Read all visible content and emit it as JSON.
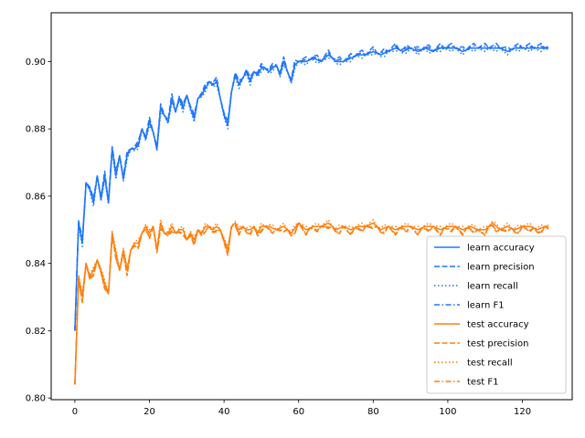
{
  "chart_data": {
    "type": "line",
    "title": "",
    "xlabel": "",
    "ylabel": "",
    "xlim": [
      -6.35,
      133.35
    ],
    "ylim": [
      0.7995,
      0.9145
    ],
    "xticks": [
      0,
      20,
      40,
      60,
      80,
      100,
      120
    ],
    "yticks": [
      0.8,
      0.82,
      0.84,
      0.86,
      0.88,
      0.9
    ],
    "xtick_labels": [
      "0",
      "20",
      "40",
      "60",
      "80",
      "100",
      "120"
    ],
    "ytick_labels": [
      "0.80",
      "0.82",
      "0.84",
      "0.86",
      "0.88",
      "0.90"
    ],
    "grid": false,
    "legend_position": "lower-right",
    "colors": {
      "learn": "#1f77ff",
      "test": "#ff7f0e"
    },
    "anchors": {
      "learn": [
        [
          0,
          0.82
        ],
        [
          1,
          0.852
        ],
        [
          2,
          0.846
        ],
        [
          3,
          0.864
        ],
        [
          4,
          0.862
        ],
        [
          5,
          0.858
        ],
        [
          6,
          0.866
        ],
        [
          7,
          0.859
        ],
        [
          8,
          0.866
        ],
        [
          9,
          0.858
        ],
        [
          10,
          0.874
        ],
        [
          11,
          0.866
        ],
        [
          12,
          0.872
        ],
        [
          13,
          0.865
        ],
        [
          14,
          0.872
        ],
        [
          15,
          0.874
        ],
        [
          16,
          0.874
        ],
        [
          17,
          0.875
        ],
        [
          18,
          0.88
        ],
        [
          19,
          0.877
        ],
        [
          20,
          0.882
        ],
        [
          21,
          0.879
        ],
        [
          22,
          0.874
        ],
        [
          23,
          0.886
        ],
        [
          24,
          0.884
        ],
        [
          25,
          0.882
        ],
        [
          26,
          0.889
        ],
        [
          27,
          0.885
        ],
        [
          28,
          0.889
        ],
        [
          29,
          0.886
        ],
        [
          30,
          0.89
        ],
        [
          31,
          0.886
        ],
        [
          32,
          0.883
        ],
        [
          33,
          0.889
        ],
        [
          34,
          0.89
        ],
        [
          35,
          0.892
        ],
        [
          36,
          0.894
        ],
        [
          37,
          0.893
        ],
        [
          38,
          0.894
        ],
        [
          39,
          0.889
        ],
        [
          40,
          0.884
        ],
        [
          41,
          0.881
        ],
        [
          42,
          0.891
        ],
        [
          43,
          0.896
        ],
        [
          44,
          0.893
        ],
        [
          45,
          0.895
        ],
        [
          46,
          0.897
        ],
        [
          47,
          0.894
        ],
        [
          48,
          0.897
        ],
        [
          49,
          0.896
        ],
        [
          50,
          0.898
        ],
        [
          51,
          0.898
        ],
        [
          52,
          0.897
        ],
        [
          53,
          0.898
        ],
        [
          54,
          0.899
        ],
        [
          55,
          0.896
        ],
        [
          56,
          0.9
        ],
        [
          57,
          0.897
        ],
        [
          58,
          0.894
        ],
        [
          59,
          0.899
        ],
        [
          60,
          0.9
        ],
        [
          62,
          0.9
        ],
        [
          64,
          0.901
        ],
        [
          66,
          0.9
        ],
        [
          68,
          0.902
        ],
        [
          70,
          0.9
        ],
        [
          72,
          0.9
        ],
        [
          74,
          0.901
        ],
        [
          76,
          0.902
        ],
        [
          78,
          0.902
        ],
        [
          80,
          0.903
        ],
        [
          82,
          0.902
        ],
        [
          84,
          0.903
        ],
        [
          86,
          0.904
        ],
        [
          88,
          0.903
        ],
        [
          90,
          0.904
        ],
        [
          92,
          0.903
        ],
        [
          94,
          0.904
        ],
        [
          96,
          0.903
        ],
        [
          98,
          0.904
        ],
        [
          100,
          0.904
        ],
        [
          102,
          0.904
        ],
        [
          104,
          0.903
        ],
        [
          106,
          0.904
        ],
        [
          108,
          0.904
        ],
        [
          110,
          0.904
        ],
        [
          112,
          0.904
        ],
        [
          114,
          0.904
        ],
        [
          116,
          0.903
        ],
        [
          118,
          0.904
        ],
        [
          120,
          0.904
        ],
        [
          122,
          0.904
        ],
        [
          124,
          0.904
        ],
        [
          126,
          0.904
        ],
        [
          127,
          0.904
        ]
      ],
      "test": [
        [
          0,
          0.804
        ],
        [
          1,
          0.836
        ],
        [
          2,
          0.83
        ],
        [
          3,
          0.84
        ],
        [
          4,
          0.836
        ],
        [
          5,
          0.838
        ],
        [
          6,
          0.841
        ],
        [
          7,
          0.838
        ],
        [
          8,
          0.834
        ],
        [
          9,
          0.831
        ],
        [
          10,
          0.849
        ],
        [
          11,
          0.843
        ],
        [
          12,
          0.838
        ],
        [
          13,
          0.844
        ],
        [
          14,
          0.838
        ],
        [
          15,
          0.844
        ],
        [
          16,
          0.846
        ],
        [
          17,
          0.846
        ],
        [
          18,
          0.849
        ],
        [
          19,
          0.851
        ],
        [
          20,
          0.849
        ],
        [
          21,
          0.851
        ],
        [
          22,
          0.844
        ],
        [
          23,
          0.852
        ],
        [
          24,
          0.849
        ],
        [
          25,
          0.849
        ],
        [
          26,
          0.851
        ],
        [
          27,
          0.849
        ],
        [
          28,
          0.85
        ],
        [
          29,
          0.85
        ],
        [
          30,
          0.847
        ],
        [
          31,
          0.849
        ],
        [
          32,
          0.847
        ],
        [
          33,
          0.85
        ],
        [
          34,
          0.849
        ],
        [
          35,
          0.851
        ],
        [
          36,
          0.851
        ],
        [
          37,
          0.85
        ],
        [
          38,
          0.851
        ],
        [
          39,
          0.85
        ],
        [
          40,
          0.847
        ],
        [
          41,
          0.844
        ],
        [
          42,
          0.851
        ],
        [
          43,
          0.852
        ],
        [
          44,
          0.85
        ],
        [
          45,
          0.851
        ],
        [
          46,
          0.85
        ],
        [
          47,
          0.85
        ],
        [
          48,
          0.851
        ],
        [
          49,
          0.849
        ],
        [
          50,
          0.851
        ],
        [
          52,
          0.851
        ],
        [
          54,
          0.85
        ],
        [
          56,
          0.851
        ],
        [
          58,
          0.849
        ],
        [
          60,
          0.852
        ],
        [
          62,
          0.85
        ],
        [
          64,
          0.851
        ],
        [
          66,
          0.851
        ],
        [
          68,
          0.852
        ],
        [
          70,
          0.85
        ],
        [
          72,
          0.851
        ],
        [
          74,
          0.85
        ],
        [
          76,
          0.851
        ],
        [
          78,
          0.851
        ],
        [
          80,
          0.852
        ],
        [
          82,
          0.85
        ],
        [
          84,
          0.851
        ],
        [
          86,
          0.85
        ],
        [
          88,
          0.851
        ],
        [
          90,
          0.851
        ],
        [
          92,
          0.85
        ],
        [
          94,
          0.851
        ],
        [
          96,
          0.851
        ],
        [
          98,
          0.85
        ],
        [
          100,
          0.851
        ],
        [
          102,
          0.851
        ],
        [
          104,
          0.85
        ],
        [
          106,
          0.851
        ],
        [
          108,
          0.85
        ],
        [
          110,
          0.85
        ],
        [
          112,
          0.852
        ],
        [
          114,
          0.85
        ],
        [
          116,
          0.851
        ],
        [
          118,
          0.85
        ],
        [
          120,
          0.851
        ],
        [
          122,
          0.851
        ],
        [
          124,
          0.85
        ],
        [
          126,
          0.851
        ],
        [
          127,
          0.851
        ]
      ]
    },
    "series": [
      {
        "name": "learn accuracy",
        "group": "learn",
        "style": "solid",
        "jitter": 0.0
      },
      {
        "name": "learn precision",
        "group": "learn",
        "style": "dashed",
        "jitter": 0.0007
      },
      {
        "name": "learn recall",
        "group": "learn",
        "style": "dotted",
        "jitter": -0.0005
      },
      {
        "name": "learn F1",
        "group": "learn",
        "style": "dashdot",
        "jitter": 0.0003
      },
      {
        "name": "test accuracy",
        "group": "test",
        "style": "solid",
        "jitter": 0.0
      },
      {
        "name": "test precision",
        "group": "test",
        "style": "dashed",
        "jitter": -0.0008
      },
      {
        "name": "test recall",
        "group": "test",
        "style": "dotted",
        "jitter": 0.0005
      },
      {
        "name": "test F1",
        "group": "test",
        "style": "dashdot",
        "jitter": -0.0006
      }
    ]
  }
}
